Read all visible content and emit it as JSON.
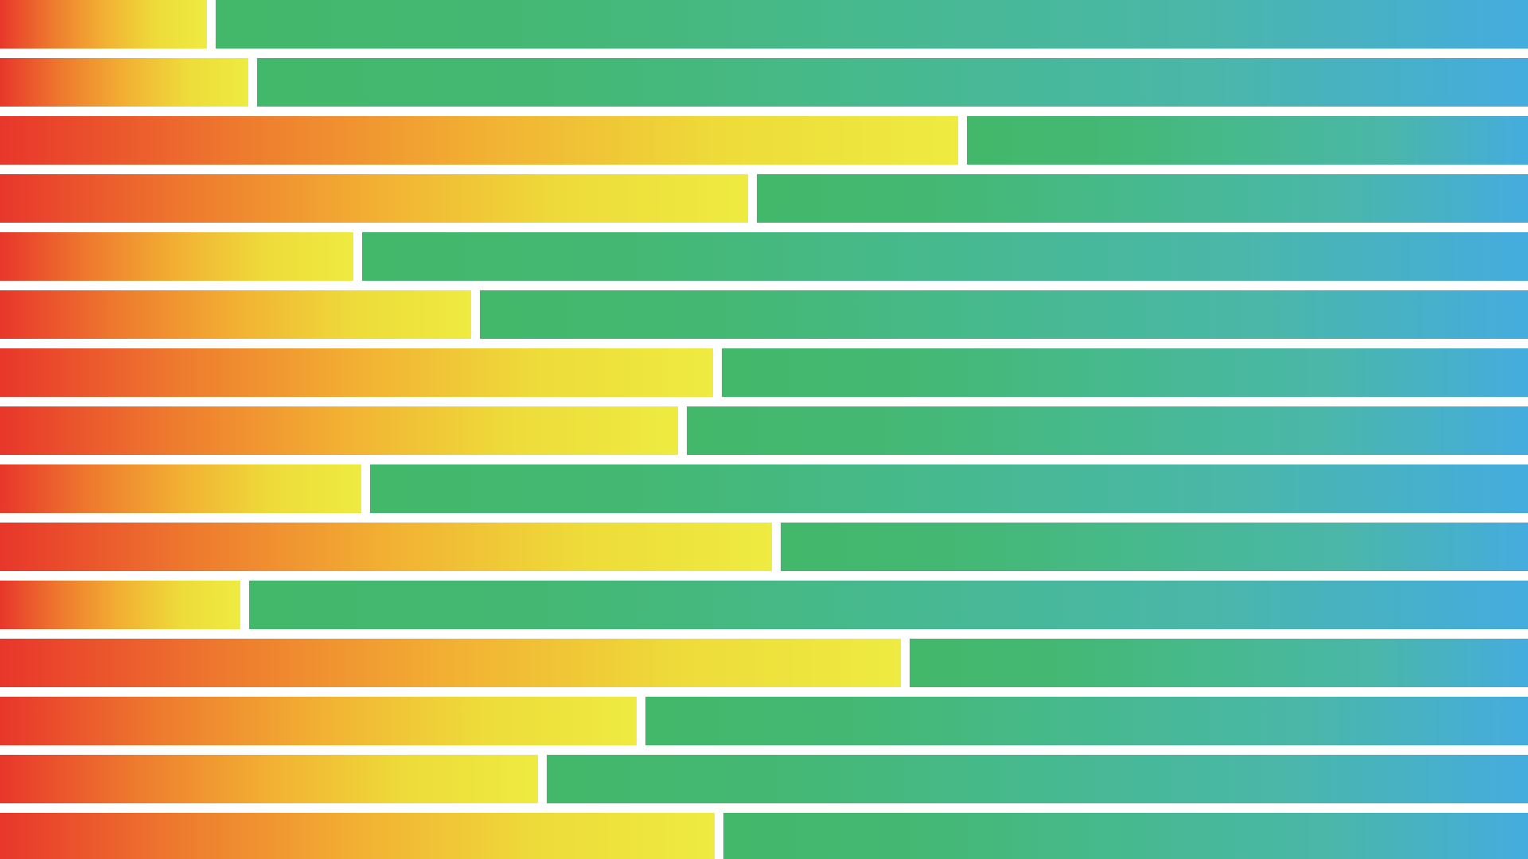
{
  "colors": {
    "background": "#ffffff",
    "warm_gradient": [
      "#e8362b",
      "#ee7a2e",
      "#f2b033",
      "#eedb3a",
      "#eeeb41"
    ],
    "cool_gradient": [
      "#43b86a",
      "#44b874",
      "#47b98f",
      "#4ab7a9",
      "#45acdf"
    ]
  },
  "rows": [
    {
      "warm_fraction": 0.1354
    },
    {
      "warm_fraction": 0.1625
    },
    {
      "warm_fraction": 0.6271
    },
    {
      "warm_fraction": 0.4896
    },
    {
      "warm_fraction": 0.2313
    },
    {
      "warm_fraction": 0.3083
    },
    {
      "warm_fraction": 0.4667
    },
    {
      "warm_fraction": 0.4438
    },
    {
      "warm_fraction": 0.2365
    },
    {
      "warm_fraction": 0.5052
    },
    {
      "warm_fraction": 0.1573
    },
    {
      "warm_fraction": 0.5896
    },
    {
      "warm_fraction": 0.4167
    },
    {
      "warm_fraction": 0.3521
    },
    {
      "warm_fraction": 0.4677
    }
  ]
}
